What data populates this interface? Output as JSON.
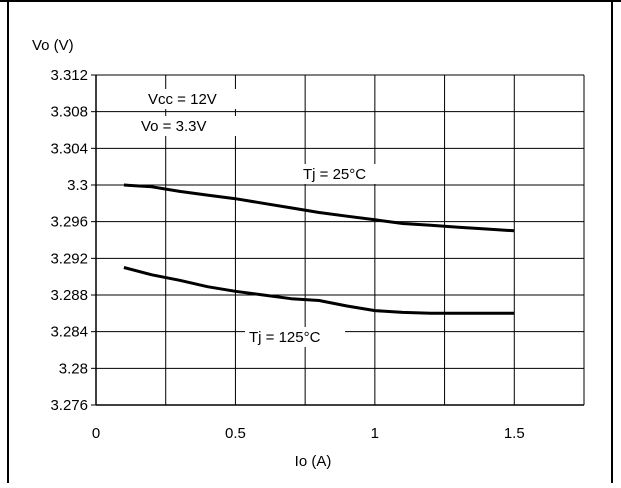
{
  "chart_data": {
    "type": "line",
    "title": "",
    "xlabel": "Io (A)",
    "ylabel": "Vo (V)",
    "xlim": [
      0,
      1.75
    ],
    "ylim": [
      3.276,
      3.312
    ],
    "x_ticks": [
      0,
      0.5,
      1,
      1.5
    ],
    "x_tick_labels": [
      "0",
      "0.5",
      "1",
      "1.5"
    ],
    "x_grid_step": 0.25,
    "y_ticks": [
      3.276,
      3.28,
      3.284,
      3.288,
      3.292,
      3.296,
      3.3,
      3.304,
      3.308,
      3.312
    ],
    "y_tick_labels": [
      "3.276",
      "3.28",
      "3.284",
      "3.288",
      "3.292",
      "3.296",
      "3.3",
      "3.304",
      "3.308",
      "3.312"
    ],
    "grid": true,
    "annotations": [
      "Vcc = 12V",
      "Vo = 3.3V"
    ],
    "series": [
      {
        "name": "Tj = 25°C",
        "x": [
          0.1,
          0.2,
          0.3,
          0.4,
          0.5,
          0.6,
          0.7,
          0.8,
          0.9,
          1.0,
          1.1,
          1.2,
          1.3,
          1.4,
          1.5
        ],
        "y": [
          3.3,
          3.2998,
          3.2993,
          3.2989,
          3.2985,
          3.298,
          3.2975,
          3.297,
          3.2966,
          3.2962,
          3.2958,
          3.2956,
          3.2954,
          3.2952,
          3.295
        ],
        "color": "#000000"
      },
      {
        "name": "Tj = 125°C",
        "x": [
          0.1,
          0.2,
          0.3,
          0.4,
          0.5,
          0.6,
          0.7,
          0.8,
          0.9,
          1.0,
          1.1,
          1.2,
          1.3,
          1.4,
          1.5
        ],
        "y": [
          3.291,
          3.2902,
          3.2896,
          3.2889,
          3.2884,
          3.288,
          3.2876,
          3.2874,
          3.2868,
          3.2863,
          3.2861,
          3.286,
          3.286,
          3.286,
          3.286
        ],
        "color": "#000000"
      }
    ]
  }
}
